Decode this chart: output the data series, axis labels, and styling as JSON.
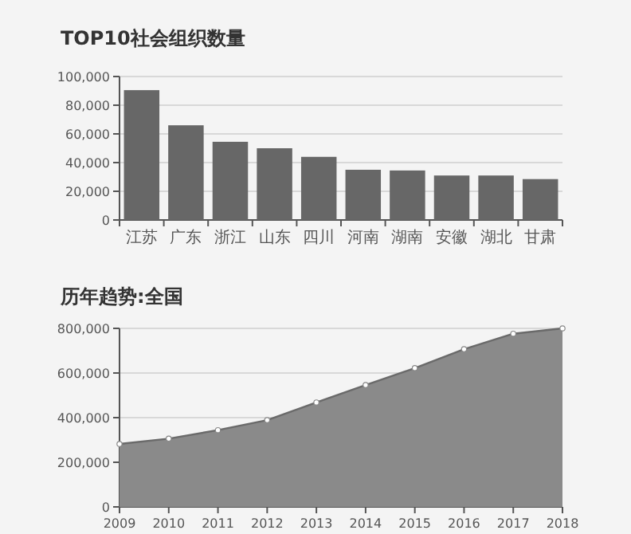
{
  "chart_data": [
    {
      "type": "bar",
      "title": "TOP10社会组织数量",
      "categories": [
        "江苏",
        "广东",
        "浙江",
        "山东",
        "四川",
        "河南",
        "湖南",
        "安徽",
        "湖北",
        "甘肃"
      ],
      "values": [
        90500,
        66000,
        54500,
        50000,
        44000,
        35000,
        34500,
        31000,
        31000,
        28500
      ],
      "color": "#676767",
      "ylim": [
        0,
        100000
      ],
      "yticks": [
        {
          "value": 0,
          "label": "0"
        },
        {
          "value": 20000,
          "label": "20,000"
        },
        {
          "value": 40000,
          "label": "40,000"
        },
        {
          "value": 60000,
          "label": "60,000"
        },
        {
          "value": 80000,
          "label": "80,000"
        },
        {
          "value": 100000,
          "label": "100,000"
        }
      ],
      "grid": "y"
    },
    {
      "type": "area",
      "title": "历年趋势:全国",
      "x": [
        2009,
        2010,
        2011,
        2012,
        2013,
        2014,
        2015,
        2016,
        2017,
        2018
      ],
      "values": [
        282000,
        306000,
        344000,
        389000,
        468000,
        546000,
        622000,
        707000,
        776000,
        800000
      ],
      "color": "#8a8a8a",
      "marker": "circle",
      "xlim": [
        2009,
        2018
      ],
      "xticks": [
        2009,
        2010,
        2011,
        2012,
        2013,
        2014,
        2015,
        2016,
        2017,
        2018
      ],
      "ylim": [
        0,
        800000
      ],
      "yticks": [
        {
          "value": 0,
          "label": "0"
        },
        {
          "value": 200000,
          "label": "200,000"
        },
        {
          "value": 400000,
          "label": "400,000"
        },
        {
          "value": 600000,
          "label": "600,000"
        },
        {
          "value": 800000,
          "label": "800,000"
        }
      ],
      "grid": "y"
    }
  ]
}
